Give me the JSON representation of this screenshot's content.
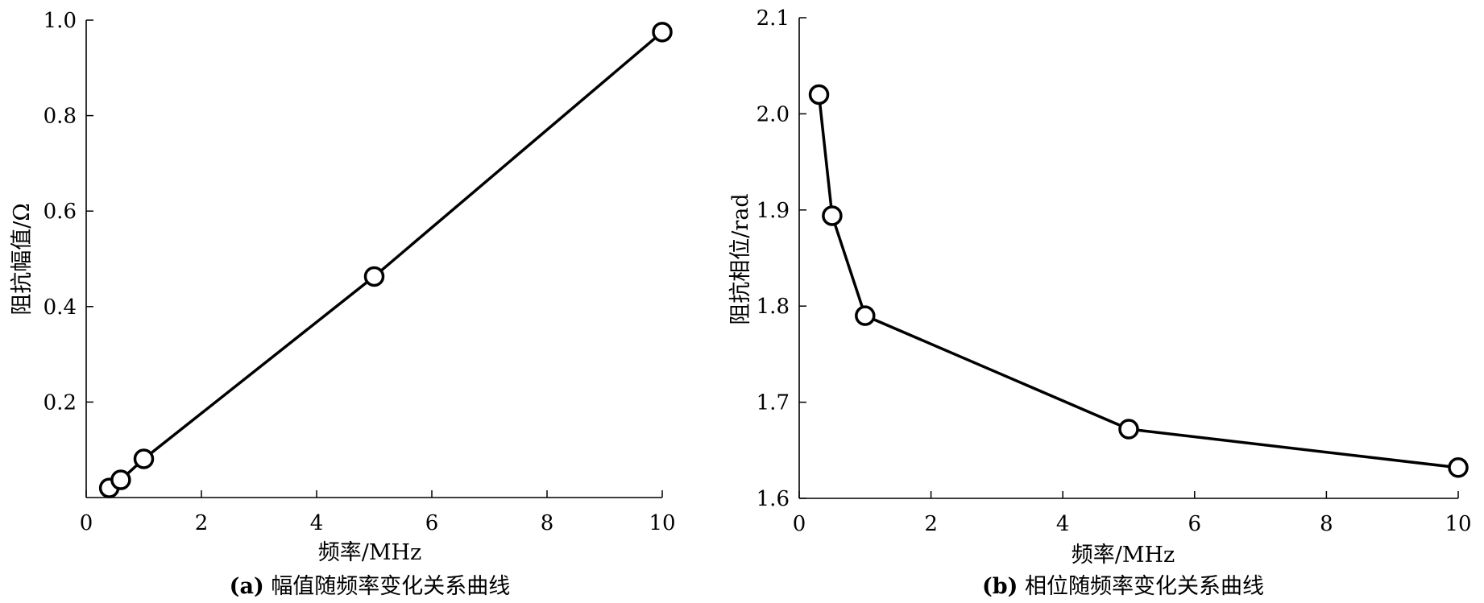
{
  "chart_data": [
    {
      "type": "line",
      "caption_key": "(a)",
      "caption_text": "幅值随频率变化关系曲线",
      "xlabel": "频率/MHz",
      "ylabel": "阻抗幅值/Ω",
      "xlim": [
        0,
        10
      ],
      "ylim": [
        0,
        1.0
      ],
      "xticks": [
        0,
        2,
        4,
        6,
        8,
        10
      ],
      "xtick_labels": [
        "0",
        "2",
        "4",
        "6",
        "8",
        "10"
      ],
      "yticks": [
        0.2,
        0.4,
        0.6,
        0.8,
        1.0
      ],
      "ytick_labels": [
        "0.2",
        "0.4",
        "0.6",
        "0.8",
        "1.0"
      ],
      "marker": "open-circle",
      "color": "#000000",
      "series": [
        {
          "x": [
            0.4,
            0.6,
            1.0,
            5.0,
            10.0
          ],
          "y": [
            0.02,
            0.037,
            0.081,
            0.463,
            0.975
          ]
        }
      ]
    },
    {
      "type": "line",
      "caption_key": "(b)",
      "caption_text": "相位随频率变化关系曲线",
      "xlabel": "频率/MHz",
      "ylabel": "阻抗相位/rad",
      "xlim": [
        0,
        10
      ],
      "ylim": [
        1.6,
        2.1
      ],
      "xticks": [
        0,
        2,
        4,
        6,
        8,
        10
      ],
      "xtick_labels": [
        "0",
        "2",
        "4",
        "6",
        "8",
        "10"
      ],
      "yticks": [
        1.6,
        1.7,
        1.8,
        1.9,
        2.0,
        2.1
      ],
      "ytick_labels": [
        "1.6",
        "1.7",
        "1.8",
        "1.9",
        "2.0",
        "2.1"
      ],
      "marker": "open-circle",
      "color": "#000000",
      "series": [
        {
          "x": [
            0.3,
            0.5,
            1.0,
            5.0,
            10.0
          ],
          "y": [
            2.02,
            1.894,
            1.79,
            1.672,
            1.632
          ]
        }
      ]
    }
  ]
}
